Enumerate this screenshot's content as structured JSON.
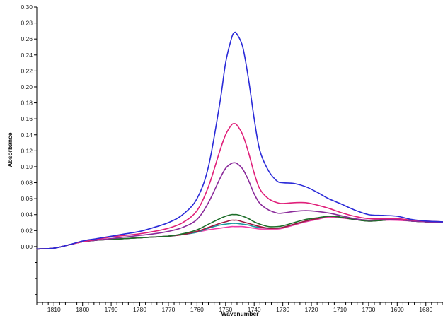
{
  "chart_data": {
    "type": "line",
    "xlabel": "Wavenumber",
    "ylabel": "Absorbance",
    "xlim": [
      1816,
      1674
    ],
    "ylim": [
      -0.07,
      0.3
    ],
    "x_reversed": true,
    "grid": false,
    "y_ticks": [
      "0.30",
      "0.28",
      "0.26",
      "0.24",
      "0.22",
      "0.20",
      "0.18",
      "0.16",
      "0.14",
      "0.12",
      "0.10",
      "0.08",
      "0.06",
      "0.04",
      "0.02",
      "0.00"
    ],
    "x_ticks": [
      "1810",
      "1800",
      "1790",
      "1780",
      "1770",
      "1760",
      "1750",
      "1740",
      "1730",
      "1720",
      "1710",
      "1700",
      "1690",
      "1680"
    ],
    "series": [
      {
        "color": "#2a2ad8",
        "x": [
          1816,
          1810,
          1805,
          1800,
          1795,
          1790,
          1785,
          1780,
          1775,
          1770,
          1765,
          1760,
          1756,
          1752,
          1750,
          1748,
          1747,
          1746,
          1744,
          1742,
          1740,
          1738,
          1735,
          1732,
          1730,
          1726,
          1722,
          1718,
          1714,
          1710,
          1705,
          1700,
          1695,
          1690,
          1685,
          1680,
          1674
        ],
        "y": [
          -0.003,
          -0.002,
          0.002,
          0.007,
          0.01,
          0.013,
          0.016,
          0.019,
          0.024,
          0.03,
          0.04,
          0.06,
          0.1,
          0.18,
          0.23,
          0.26,
          0.268,
          0.266,
          0.25,
          0.21,
          0.16,
          0.12,
          0.095,
          0.082,
          0.08,
          0.079,
          0.075,
          0.068,
          0.06,
          0.054,
          0.046,
          0.04,
          0.039,
          0.038,
          0.034,
          0.032,
          0.031
        ]
      },
      {
        "color": "#e0207a",
        "x": [
          1816,
          1810,
          1805,
          1800,
          1795,
          1790,
          1785,
          1780,
          1775,
          1770,
          1765,
          1760,
          1756,
          1752,
          1750,
          1748,
          1747,
          1746,
          1744,
          1742,
          1740,
          1738,
          1735,
          1732,
          1730,
          1726,
          1722,
          1718,
          1714,
          1710,
          1705,
          1700,
          1695,
          1690,
          1685,
          1680,
          1674
        ],
        "y": [
          -0.003,
          -0.002,
          0.002,
          0.006,
          0.009,
          0.012,
          0.014,
          0.016,
          0.019,
          0.023,
          0.03,
          0.045,
          0.075,
          0.12,
          0.14,
          0.152,
          0.154,
          0.152,
          0.14,
          0.118,
          0.092,
          0.072,
          0.06,
          0.055,
          0.054,
          0.055,
          0.055,
          0.052,
          0.048,
          0.043,
          0.038,
          0.035,
          0.035,
          0.035,
          0.033,
          0.032,
          0.031
        ]
      },
      {
        "color": "#8a2a9a",
        "x": [
          1816,
          1810,
          1805,
          1800,
          1795,
          1790,
          1785,
          1780,
          1775,
          1770,
          1765,
          1760,
          1756,
          1752,
          1750,
          1748,
          1747,
          1746,
          1744,
          1742,
          1740,
          1738,
          1735,
          1732,
          1730,
          1726,
          1722,
          1718,
          1714,
          1710,
          1705,
          1700,
          1695,
          1690,
          1685,
          1680,
          1674
        ],
        "y": [
          -0.003,
          -0.002,
          0.002,
          0.006,
          0.008,
          0.01,
          0.012,
          0.014,
          0.016,
          0.019,
          0.024,
          0.034,
          0.055,
          0.085,
          0.098,
          0.104,
          0.105,
          0.104,
          0.097,
          0.083,
          0.066,
          0.054,
          0.046,
          0.042,
          0.042,
          0.044,
          0.045,
          0.044,
          0.042,
          0.039,
          0.035,
          0.033,
          0.034,
          0.034,
          0.032,
          0.031,
          0.03
        ]
      },
      {
        "color": "#1e6e2a",
        "x": [
          1816,
          1810,
          1805,
          1800,
          1795,
          1790,
          1785,
          1780,
          1775,
          1770,
          1765,
          1760,
          1756,
          1752,
          1750,
          1748,
          1747,
          1746,
          1744,
          1742,
          1740,
          1738,
          1735,
          1732,
          1730,
          1726,
          1722,
          1718,
          1714,
          1710,
          1705,
          1700,
          1695,
          1690,
          1685,
          1680,
          1674
        ],
        "y": [
          -0.003,
          -0.002,
          0.002,
          0.006,
          0.008,
          0.009,
          0.01,
          0.011,
          0.012,
          0.013,
          0.016,
          0.021,
          0.028,
          0.035,
          0.038,
          0.04,
          0.04,
          0.04,
          0.038,
          0.035,
          0.031,
          0.028,
          0.025,
          0.025,
          0.026,
          0.03,
          0.034,
          0.036,
          0.038,
          0.037,
          0.034,
          0.032,
          0.033,
          0.034,
          0.032,
          0.031,
          0.03
        ]
      },
      {
        "color": "#a01840",
        "x": [
          1816,
          1810,
          1805,
          1800,
          1795,
          1790,
          1785,
          1780,
          1775,
          1770,
          1765,
          1760,
          1756,
          1752,
          1750,
          1748,
          1747,
          1746,
          1744,
          1742,
          1740,
          1738,
          1735,
          1732,
          1730,
          1726,
          1722,
          1718,
          1714,
          1710,
          1705,
          1700,
          1695,
          1690,
          1685,
          1680,
          1674
        ],
        "y": [
          -0.003,
          -0.002,
          0.002,
          0.006,
          0.008,
          0.009,
          0.01,
          0.011,
          0.012,
          0.013,
          0.015,
          0.019,
          0.024,
          0.029,
          0.031,
          0.033,
          0.033,
          0.033,
          0.031,
          0.029,
          0.027,
          0.025,
          0.023,
          0.023,
          0.024,
          0.028,
          0.032,
          0.035,
          0.038,
          0.037,
          0.034,
          0.032,
          0.033,
          0.034,
          0.032,
          0.031,
          0.03
        ]
      },
      {
        "color": "#1a9aa0",
        "x": [
          1816,
          1810,
          1805,
          1800,
          1795,
          1790,
          1785,
          1780,
          1775,
          1770,
          1765,
          1760,
          1756,
          1752,
          1750,
          1748,
          1747,
          1746,
          1744,
          1742,
          1740,
          1738,
          1735,
          1732,
          1730,
          1726,
          1722,
          1718,
          1714,
          1710,
          1705,
          1700,
          1695,
          1690,
          1685,
          1680,
          1674
        ],
        "y": [
          -0.003,
          -0.002,
          0.002,
          0.006,
          0.008,
          0.009,
          0.01,
          0.011,
          0.012,
          0.013,
          0.015,
          0.018,
          0.023,
          0.027,
          0.028,
          0.029,
          0.029,
          0.029,
          0.028,
          0.027,
          0.025,
          0.024,
          0.023,
          0.023,
          0.024,
          0.028,
          0.032,
          0.035,
          0.038,
          0.037,
          0.034,
          0.032,
          0.033,
          0.034,
          0.032,
          0.031,
          0.03
        ]
      },
      {
        "color": "#f03aa8",
        "x": [
          1816,
          1810,
          1805,
          1800,
          1795,
          1790,
          1785,
          1780,
          1775,
          1770,
          1765,
          1760,
          1756,
          1752,
          1750,
          1748,
          1747,
          1746,
          1744,
          1742,
          1740,
          1738,
          1735,
          1732,
          1730,
          1726,
          1722,
          1718,
          1714,
          1710,
          1705,
          1700,
          1695,
          1690,
          1685,
          1680,
          1674
        ],
        "y": [
          -0.003,
          -0.002,
          0.002,
          0.006,
          0.008,
          0.009,
          0.01,
          0.011,
          0.012,
          0.013,
          0.015,
          0.018,
          0.021,
          0.023,
          0.024,
          0.025,
          0.025,
          0.025,
          0.025,
          0.024,
          0.023,
          0.022,
          0.022,
          0.022,
          0.023,
          0.027,
          0.031,
          0.034,
          0.037,
          0.036,
          0.034,
          0.032,
          0.033,
          0.033,
          0.032,
          0.031,
          0.03
        ]
      }
    ]
  }
}
